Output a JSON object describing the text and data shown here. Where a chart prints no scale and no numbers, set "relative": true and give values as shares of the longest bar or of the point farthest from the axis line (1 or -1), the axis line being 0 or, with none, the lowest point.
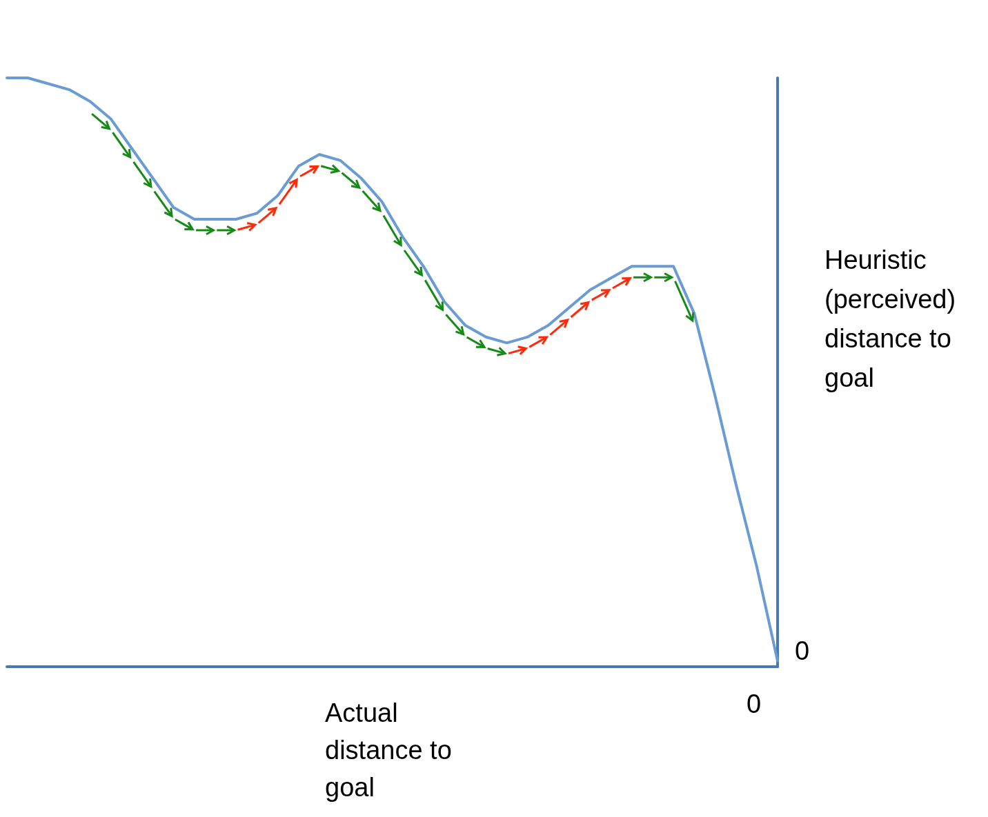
{
  "chart_data": {
    "type": "line",
    "relative": true,
    "xlabel": "Actual distance to goal",
    "ylabel": "Heuristic (perceived) distance to goal",
    "annotations": [
      "0",
      "0"
    ],
    "categories": [
      null,
      null,
      null,
      null,
      null,
      null,
      null,
      null,
      null,
      null,
      null,
      null,
      null,
      null,
      null,
      null,
      null,
      null,
      null,
      null,
      null,
      null,
      null,
      null,
      null,
      null,
      null,
      null,
      null,
      null,
      null,
      null,
      null,
      null,
      null,
      null,
      null,
      null
    ],
    "series": [
      {
        "color": "#6a9bd3",
        "values": [
          1.0,
          1.0,
          0.99,
          0.98,
          0.96,
          0.93,
          0.88,
          0.83,
          0.78,
          0.76,
          0.76,
          0.76,
          0.77,
          0.8,
          0.85,
          0.87,
          0.86,
          0.83,
          0.79,
          0.73,
          0.68,
          0.62,
          0.58,
          0.56,
          0.55,
          0.56,
          0.58,
          0.61,
          0.64,
          0.66,
          0.68,
          0.68,
          0.68,
          0.6,
          0.46,
          0.31,
          0.17,
          0.01
        ]
      }
    ],
    "grid": false,
    "marker": "none",
    "line_style": "solid"
  }
}
